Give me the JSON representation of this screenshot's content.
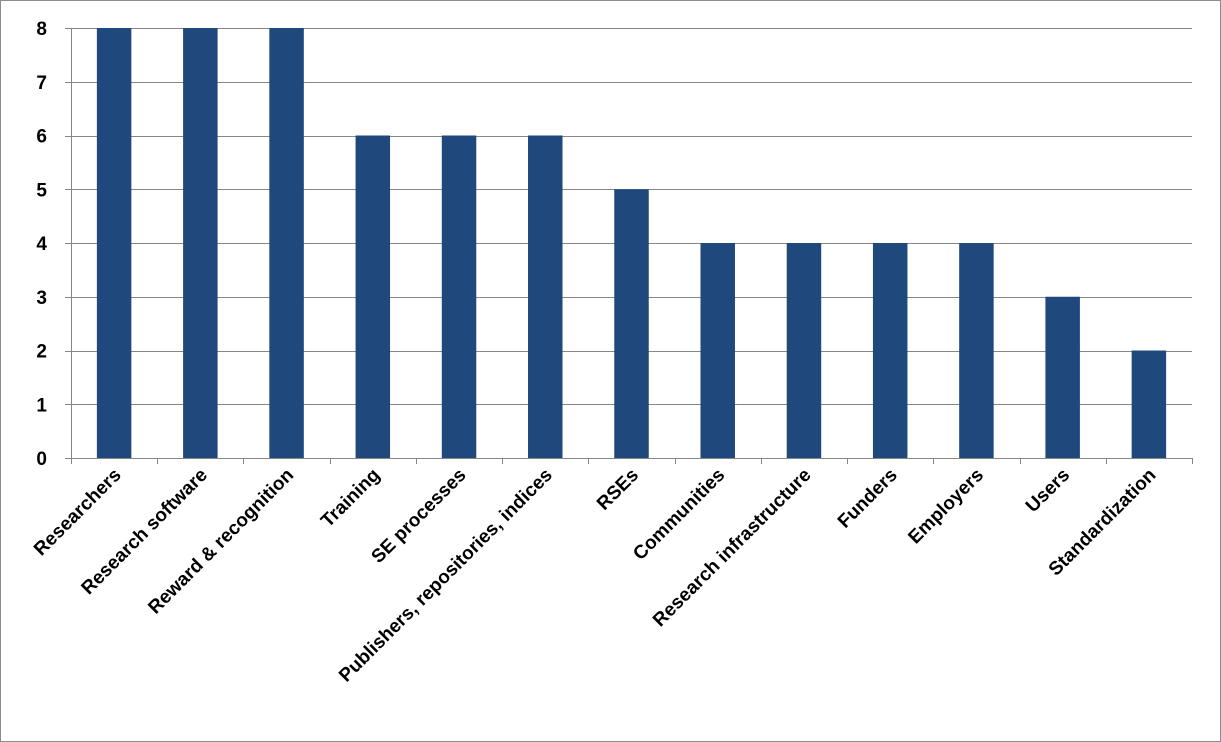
{
  "chart_data": {
    "type": "bar",
    "categories": [
      "Researchers",
      "Research software",
      "Reward & recognition",
      "Training",
      "SE processes",
      "Publishers, repositories, indices",
      "RSEs",
      "Communities",
      "Research infrastructure",
      "Funders",
      "Employers",
      "Users",
      "Standardization"
    ],
    "values": [
      8,
      8,
      8,
      6,
      6,
      6,
      5,
      4,
      4,
      4,
      4,
      3,
      2
    ],
    "yticks": [
      "0",
      "1",
      "2",
      "3",
      "4",
      "5",
      "6",
      "7",
      "8"
    ],
    "ylim": [
      0,
      8
    ],
    "grid": true,
    "legend": "none",
    "bar_color": "#1f497d",
    "grid_color": "#868686",
    "axis_color": "#868686"
  }
}
